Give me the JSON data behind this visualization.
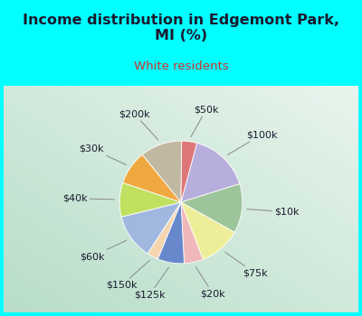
{
  "title": "Income distribution in Edgemont Park,\nMI (%)",
  "subtitle": "White residents",
  "fig_bg": "#00ffff",
  "chart_bg_color": "#c8ead8",
  "slices": [
    {
      "label": "$100k",
      "value": 16,
      "color": "#b8aedd"
    },
    {
      "label": "$10k",
      "value": 13,
      "color": "#9dc49a"
    },
    {
      "label": "$75k",
      "value": 11,
      "color": "#eeee99"
    },
    {
      "label": "$20k",
      "value": 5,
      "color": "#f0b8b8"
    },
    {
      "label": "$125k",
      "value": 7,
      "color": "#6888cc"
    },
    {
      "label": "$150k",
      "value": 3,
      "color": "#f5d5b0"
    },
    {
      "label": "$60k",
      "value": 12,
      "color": "#a0b8e0"
    },
    {
      "label": "$40k",
      "value": 9,
      "color": "#c0e060"
    },
    {
      "label": "$30k",
      "value": 9,
      "color": "#f0a840"
    },
    {
      "label": "$200k",
      "value": 11,
      "color": "#c0b8a0"
    },
    {
      "label": "$50k",
      "value": 4,
      "color": "#dd7777"
    }
  ],
  "startangle": 75,
  "title_fontsize": 11.5,
  "subtitle_fontsize": 9.5,
  "label_fontsize": 8.0,
  "title_color": "#1a1a2e",
  "subtitle_color": "#cc3333",
  "label_color": "#1a1a2e"
}
